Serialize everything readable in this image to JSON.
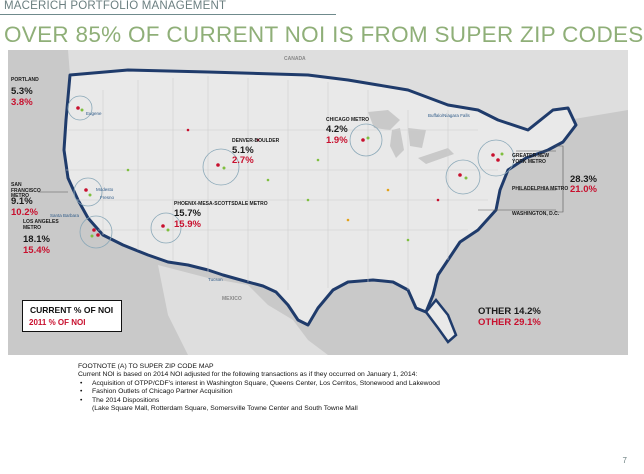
{
  "header": {
    "section": "MACERICH PORTFOLIO MANAGEMENT",
    "title": "OVER 85% OF CURRENT NOI IS FROM SUPER ZIP CODES"
  },
  "map": {
    "labels": {
      "canada": "CANADA",
      "mexico": "MEXICO"
    },
    "cities": {
      "eugene": "Eugene",
      "modesto": "Modesto",
      "fresno": "Fresno",
      "santa_barbara": "Santa Barbara",
      "tucson": "Tucson",
      "buffalo": "Buffalo/Niagara Falls"
    },
    "regions": [
      {
        "id": "portland",
        "name": "PORTLAND",
        "current": "5.3%",
        "prior": "3.8%"
      },
      {
        "id": "sf",
        "name": "SAN FRANCISCO METRO",
        "current": "9.1%",
        "prior": "10.2%"
      },
      {
        "id": "la",
        "name": "LOS ANGELES METRO",
        "current": "18.1%",
        "prior": "15.4%"
      },
      {
        "id": "phoenix",
        "name": "PHOENIX-MESA-SCOTTSDALE METRO",
        "current": "15.7%",
        "prior": "15.9%"
      },
      {
        "id": "denver",
        "name": "DENVER-BOULDER",
        "current": "5.1%",
        "prior": "2.7%"
      },
      {
        "id": "chicago",
        "name": "CHICAGO METRO",
        "current": "4.2%",
        "prior": "1.9%"
      },
      {
        "id": "east",
        "names": [
          "GREATER NEW YORK METRO",
          "PHILADELPHIA METRO",
          "WASHINGTON, D.C."
        ],
        "current": "28.3%",
        "prior": "21.0%"
      }
    ],
    "other": {
      "current": "OTHER 14.2%",
      "prior": "OTHER 29.1%"
    }
  },
  "legend": {
    "current": "CURRENT % OF NOI",
    "prior": "2011 % OF NOI"
  },
  "footnote": {
    "heading": "FOOTNOTE (A) TO SUPER ZIP CODE MAP",
    "intro": "Current NOI is based on 2014 NOI adjusted for the following transactions as if they occurred on January 1, 2014:",
    "items": [
      "Acquisition of OTPP/CDF's interest in Washington Square, Queens Center, Los Cerritos, Stonewood and Lakewood",
      "Fashion Outlets of Chicago Partner Acquisition",
      "The 2014 Dispositions"
    ],
    "detail": "(Lake Square Mall, Rotterdam Square, Somersville Towne Center and South Towne Mall"
  },
  "page_number": "7",
  "colors": {
    "title": "#8faf78",
    "red": "#c8102e",
    "coast": "#1f3b6b",
    "land": "#e9e9e9",
    "water": "#c9c9c9"
  }
}
